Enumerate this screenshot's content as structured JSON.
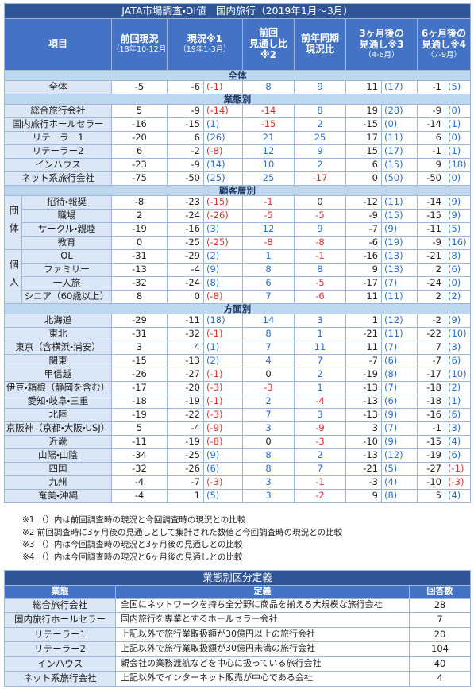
{
  "header": {
    "title": "JATA市場調査・DI値　国内旅行（2019年1月～3月）",
    "columns": [
      {
        "lines": [
          "項目"
        ]
      },
      {
        "lines": [
          "前回現況"
        ],
        "sub": "（18年10-12月）"
      },
      {
        "lines": [
          "現況※1"
        ],
        "sub": "（19年1-3月）"
      },
      {
        "lines": [
          "前回",
          "見通し比",
          "※2"
        ]
      },
      {
        "lines": [
          "前年同期",
          "現況比"
        ]
      },
      {
        "lines": [
          "3ヶ月後の",
          "見通し※3"
        ],
        "sub": "（4-6月）"
      },
      {
        "lines": [
          "6ヶ月後の",
          "見通し※4"
        ],
        "sub": "（7-9月）"
      }
    ]
  },
  "sections": [
    {
      "title": "全体",
      "rows": [
        {
          "label": "全体",
          "values": [
            "-5",
            "-6",
            "(-1)",
            "8",
            "9",
            "11",
            "(17)",
            "-1",
            "(5)"
          ]
        }
      ]
    },
    {
      "title": "業態別",
      "rows": [
        {
          "label": "総合旅行会社",
          "values": [
            "5",
            "-9",
            "(-14)",
            "-14",
            "8",
            "19",
            "(28)",
            "-9",
            "(0)"
          ]
        },
        {
          "label": "国内旅行ホールセラー",
          "values": [
            "-16",
            "-15",
            "(1)",
            "-15",
            "2",
            "-15",
            "(0)",
            "-14",
            "(1)"
          ]
        },
        {
          "label": "リテーラー1",
          "values": [
            "-20",
            "6",
            "(26)",
            "21",
            "25",
            "17",
            "(11)",
            "6",
            "(0)"
          ]
        },
        {
          "label": "リテーラー2",
          "values": [
            "6",
            "-2",
            "(-8)",
            "12",
            "9",
            "15",
            "(17)",
            "-1",
            "(1)"
          ]
        },
        {
          "label": "インハウス",
          "values": [
            "-23",
            "-9",
            "(14)",
            "10",
            "2",
            "6",
            "(15)",
            "9",
            "(18)"
          ]
        },
        {
          "label": "ネット系旅行会社",
          "values": [
            "-75",
            "-50",
            "(25)",
            "25",
            "-17",
            "0",
            "(50)",
            "-50",
            "(0)"
          ]
        }
      ]
    },
    {
      "title": "顧客層別",
      "groups": [
        {
          "name": "団体",
          "rows": [
            {
              "label": "招待・報奨",
              "values": [
                "-8",
                "-23",
                "(-15)",
                "-1",
                "0",
                "-12",
                "(11)",
                "-14",
                "(9)"
              ]
            },
            {
              "label": "職場",
              "values": [
                "2",
                "-24",
                "(-26)",
                "-5",
                "-5",
                "-9",
                "(15)",
                "-15",
                "(9)"
              ]
            },
            {
              "label": "サークル・親睦",
              "values": [
                "-19",
                "-16",
                "(3)",
                "12",
                "9",
                "-7",
                "(9)",
                "-11",
                "(5)"
              ]
            },
            {
              "label": "教育",
              "values": [
                "0",
                "-25",
                "(-25)",
                "-8",
                "-8",
                "-6",
                "(19)",
                "-9",
                "(16)"
              ]
            }
          ]
        },
        {
          "name": "個人",
          "rows": [
            {
              "label": "OL",
              "values": [
                "-31",
                "-29",
                "(2)",
                "1",
                "-1",
                "-16",
                "(13)",
                "-21",
                "(8)"
              ]
            },
            {
              "label": "ファミリー",
              "values": [
                "-13",
                "-4",
                "(9)",
                "8",
                "8",
                "9",
                "(13)",
                "2",
                "(6)"
              ]
            },
            {
              "label": "一人旅",
              "values": [
                "-32",
                "-24",
                "(8)",
                "6",
                "-5",
                "-17",
                "(7)",
                "-24",
                "(0)"
              ]
            },
            {
              "label": "シニア（60歳以上）",
              "values": [
                "8",
                "0",
                "(-8)",
                "7",
                "-6",
                "11",
                "(11)",
                "2",
                "(2)"
              ]
            }
          ]
        }
      ]
    },
    {
      "title": "方面別",
      "rows": [
        {
          "label": "北海道",
          "values": [
            "-29",
            "-11",
            "(18)",
            "14",
            "3",
            "1",
            "(12)",
            "-2",
            "(9)"
          ]
        },
        {
          "label": "東北",
          "values": [
            "-31",
            "-32",
            "(-1)",
            "8",
            "1",
            "-21",
            "(11)",
            "-22",
            "(10)"
          ]
        },
        {
          "label": "東京（含横浜・浦安）",
          "values": [
            "3",
            "4",
            "(1)",
            "7",
            "11",
            "11",
            "(7)",
            "7",
            "(3)"
          ]
        },
        {
          "label": "関東",
          "values": [
            "-15",
            "-13",
            "(2)",
            "4",
            "7",
            "-7",
            "(6)",
            "-7",
            "(6)"
          ]
        },
        {
          "label": "甲信越",
          "values": [
            "-26",
            "-27",
            "(-1)",
            "0",
            "2",
            "-19",
            "(8)",
            "-17",
            "(10)"
          ]
        },
        {
          "label": "伊豆・箱根（静岡を含む）",
          "values": [
            "-17",
            "-20",
            "(-3)",
            "-3",
            "1",
            "-13",
            "(7)",
            "-18",
            "(2)"
          ]
        },
        {
          "label": "愛知・岐阜・三重",
          "values": [
            "-18",
            "-19",
            "(-1)",
            "2",
            "-4",
            "-13",
            "(6)",
            "-18",
            "(1)"
          ]
        },
        {
          "label": "北陸",
          "values": [
            "-19",
            "-22",
            "(-3)",
            "7",
            "3",
            "-13",
            "(9)",
            "-16",
            "(6)"
          ]
        },
        {
          "label": "京阪神（京都・大阪・USJ）",
          "values": [
            "5",
            "-4",
            "(-9)",
            "3",
            "-9",
            "3",
            "(7)",
            "-1",
            "(3)"
          ]
        },
        {
          "label": "近畿",
          "values": [
            "-11",
            "-19",
            "(-8)",
            "0",
            "-3",
            "-10",
            "(9)",
            "-15",
            "(4)"
          ]
        },
        {
          "label": "山陽・山陰",
          "values": [
            "-34",
            "-25",
            "(9)",
            "8",
            "2",
            "-13",
            "(12)",
            "-19",
            "(6)"
          ]
        },
        {
          "label": "四国",
          "values": [
            "-32",
            "-26",
            "(6)",
            "8",
            "7",
            "-21",
            "(5)",
            "-27",
            "(-1)"
          ]
        },
        {
          "label": "九州",
          "values": [
            "-4",
            "-7",
            "(-3)",
            "3",
            "-1",
            "-3",
            "(4)",
            "-10",
            "(-3)"
          ]
        },
        {
          "label": "奄美・沖縄",
          "values": [
            "-4",
            "1",
            "(5)",
            "3",
            "-2",
            "9",
            "(8)",
            "5",
            "(4)"
          ]
        }
      ]
    }
  ],
  "notes": [
    "※1 （）内は前回調査時の現況と今回調査時の現況との比較",
    "※2 前回調査時に3ヶ月後の見通しとして集計された数値と今回調査時の現況との比較",
    "※3 （）内は今回調査時の現況と3ヶ月後の見通しとの比較",
    "※4 （）内は今回調査時の現況と6ヶ月後の見通しとの比較"
  ],
  "definitions": {
    "title": "業態別区分定義",
    "columns": [
      "業態",
      "定義",
      "回答数"
    ],
    "rows": [
      [
        "総合旅行会社",
        "全国にネットワークを持ち全分野に商品を揃える大規模な旅行会社",
        "28"
      ],
      [
        "国内旅行ホールセラー",
        "国内旅行を専業とするホールセラー会社",
        "7"
      ],
      [
        "リテーラー1",
        "上記以外で旅行業取扱額が30億円以上の旅行会社",
        "20"
      ],
      [
        "リテーラー2",
        "上記以外で旅行業取扱額が30億円未満の旅行会社",
        "104"
      ],
      [
        "インハウス",
        "親会社の業務渡航などを中心に扱っている旅行会社",
        "40"
      ],
      [
        "ネット系旅行会社",
        "上記以外でインターネット販売が中心である会社",
        "4"
      ]
    ]
  }
}
